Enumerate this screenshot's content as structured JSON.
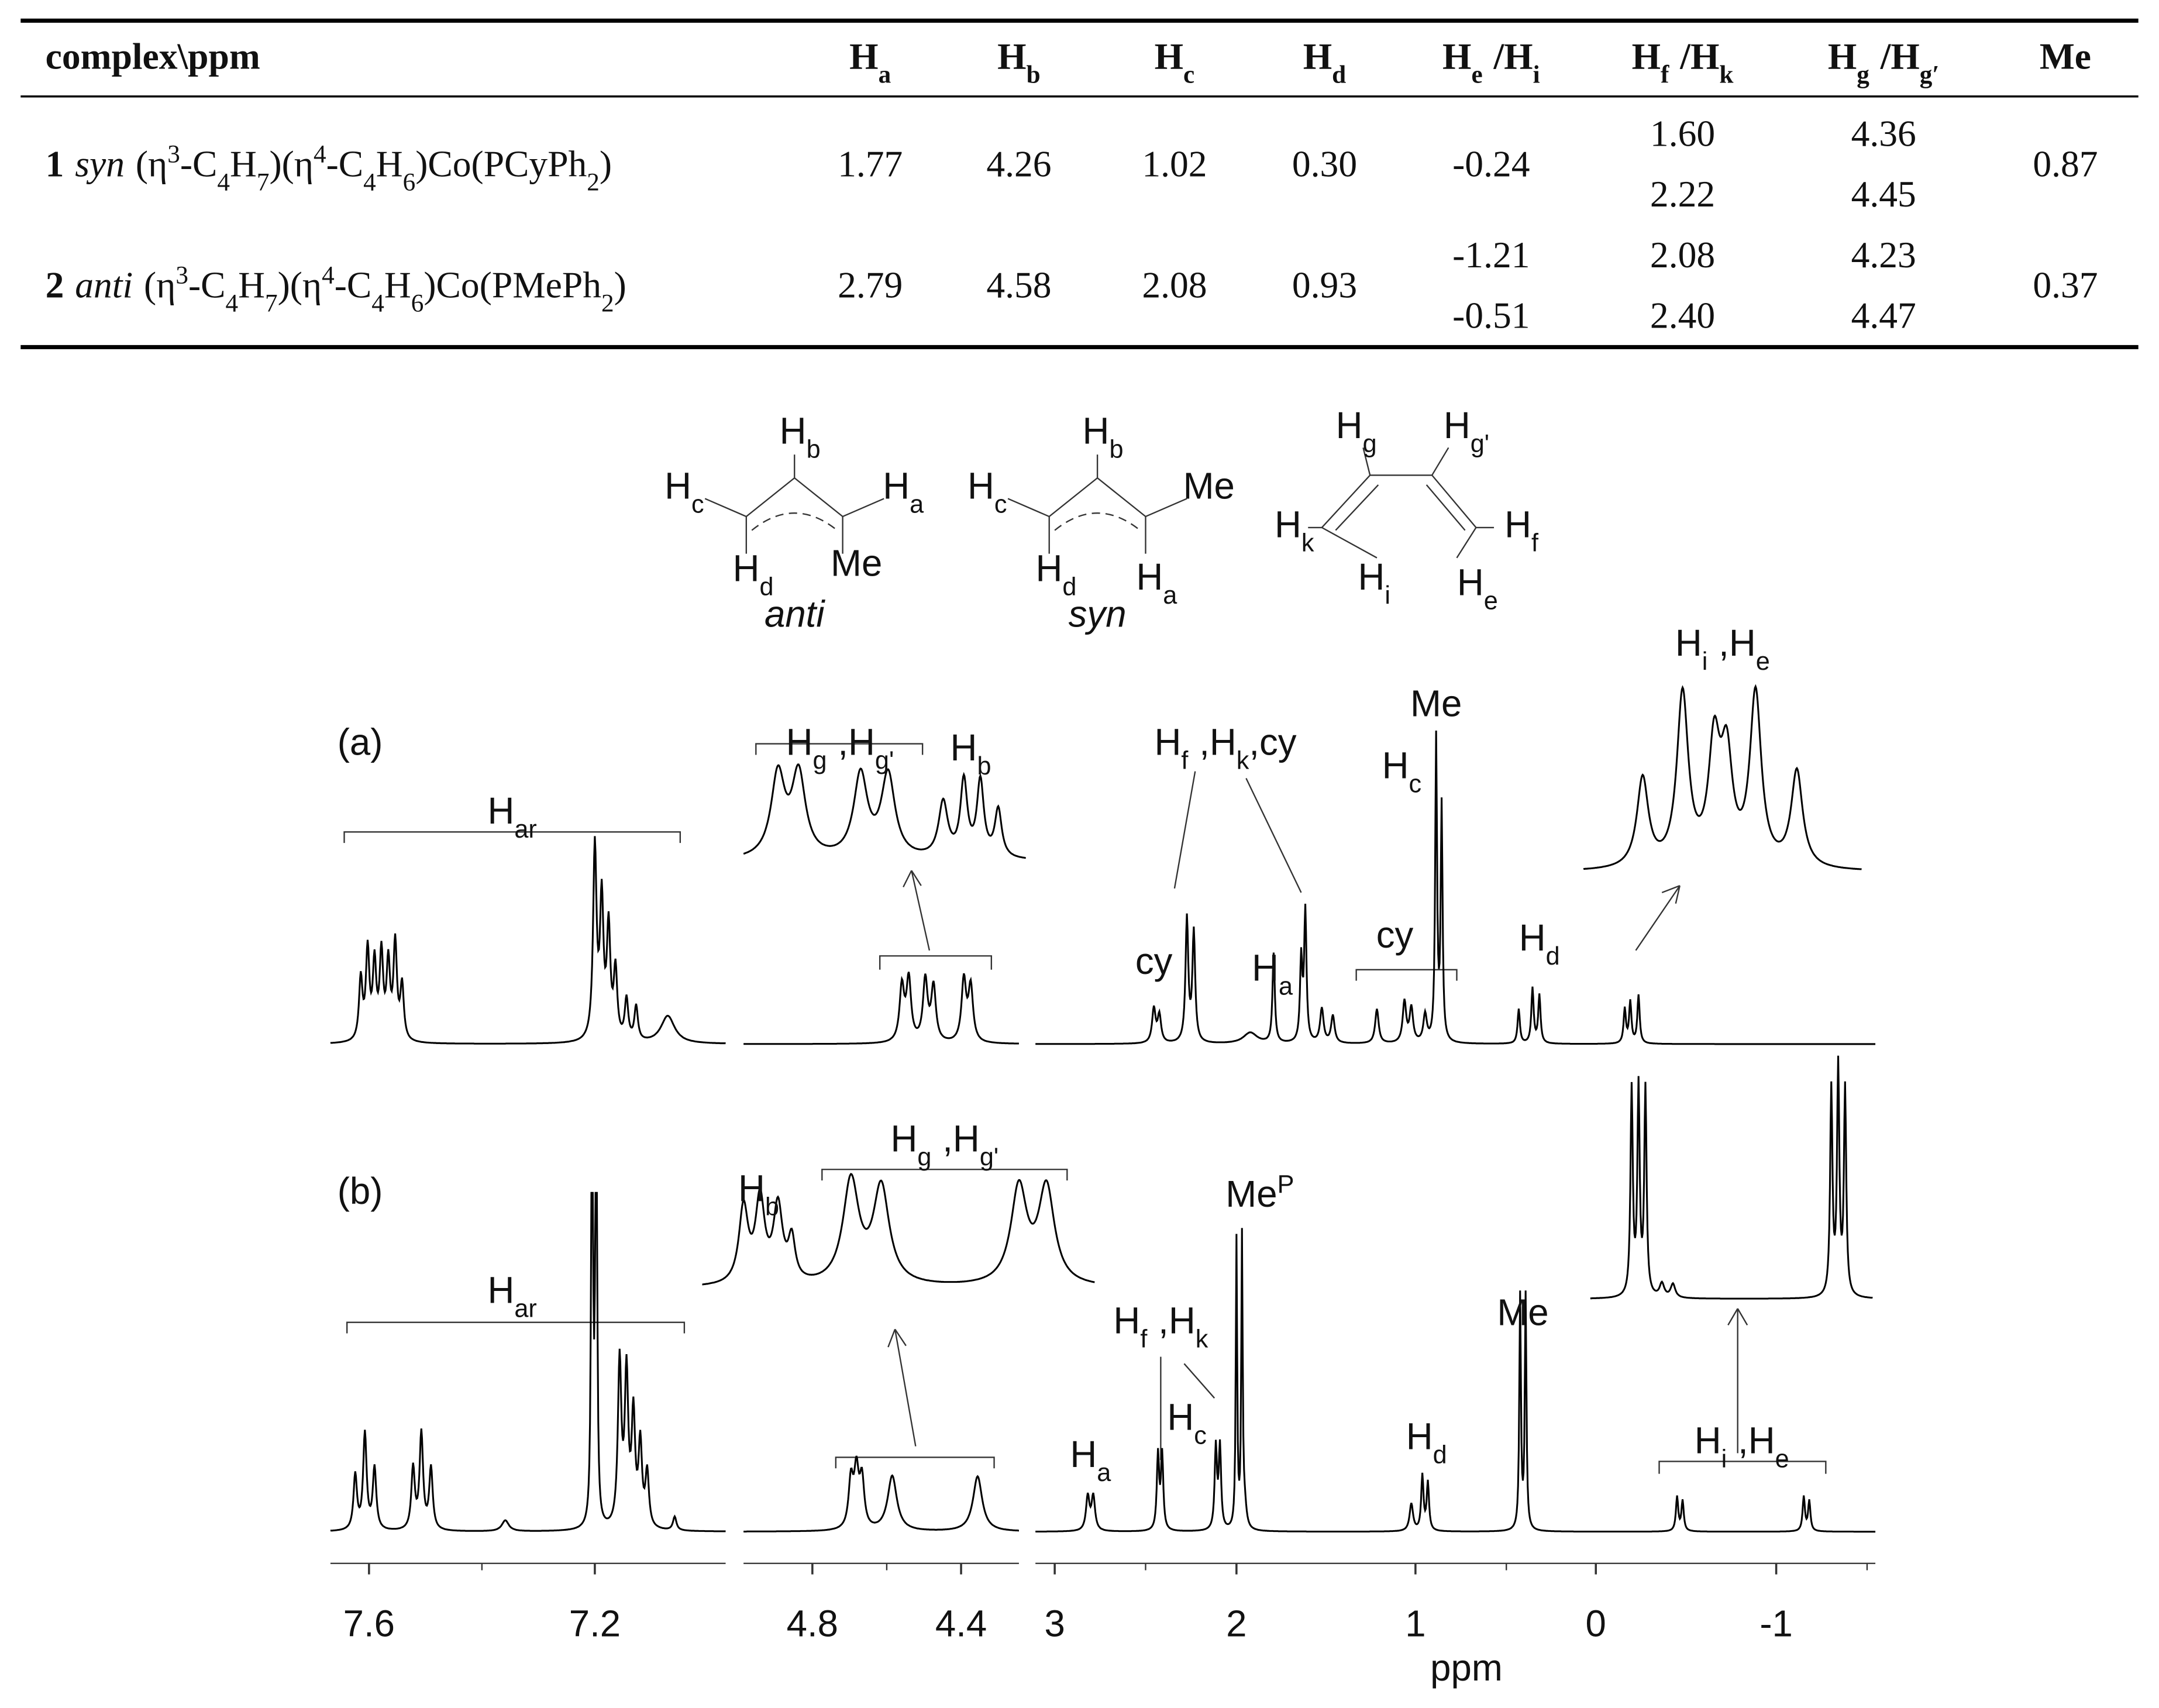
{
  "table": {
    "columns": [
      [
        "complex\\ppm"
      ],
      [
        "H",
        "a"
      ],
      [
        "H",
        "b"
      ],
      [
        "H",
        "c"
      ],
      [
        "H",
        "d"
      ],
      [
        "H",
        "e",
        "/H",
        "i"
      ],
      [
        "H",
        "f",
        "/H",
        "k"
      ],
      [
        "H",
        "g",
        "/H",
        "g′"
      ],
      [
        "Me"
      ]
    ],
    "rows": [
      {
        "label": [
          "1",
          "syn",
          "(η",
          "3",
          "-C",
          "4",
          "H",
          "7",
          ")(η",
          "4",
          "-C",
          "4",
          "H",
          "6",
          ")Co(PCyPh",
          "2",
          ")"
        ],
        "cells": [
          [
            "1.77"
          ],
          [
            "4.26"
          ],
          [
            "1.02"
          ],
          [
            "0.30"
          ],
          [
            "-0.24"
          ],
          [
            "1.60",
            "2.22"
          ],
          [
            "4.36",
            "4.45"
          ],
          [
            "0.87"
          ]
        ]
      },
      {
        "label": [
          "2",
          "anti",
          "(η",
          "3",
          "-C",
          "4",
          "H",
          "7",
          ")(η",
          "4",
          "-C",
          "4",
          "H",
          "6",
          ")Co(PMePh",
          "2",
          ")"
        ],
        "cells": [
          [
            "2.79"
          ],
          [
            "4.58"
          ],
          [
            "2.08"
          ],
          [
            "0.93"
          ],
          [
            "-1.21",
            "-0.51"
          ],
          [
            "2.08",
            "2.40"
          ],
          [
            "4.23",
            "4.47"
          ],
          [
            "0.37"
          ]
        ]
      }
    ]
  },
  "structures": [
    {
      "labels": [
        [
          "H",
          "b"
        ],
        [
          "H",
          "c"
        ],
        [
          "H",
          "a"
        ],
        [
          "H",
          "d"
        ],
        [
          "Me"
        ]
      ],
      "name": "anti"
    },
    {
      "labels": [
        [
          "H",
          "b"
        ],
        [
          "H",
          "c"
        ],
        [
          "Me"
        ],
        [
          "H",
          "d"
        ],
        [
          "H",
          "a"
        ]
      ],
      "name": "syn"
    },
    {
      "labels": [
        [
          "H",
          "g"
        ],
        [
          "H",
          "g'"
        ],
        [
          "H",
          "k"
        ],
        [
          "H",
          "f"
        ],
        [
          "H",
          "i"
        ],
        [
          "H",
          "e"
        ]
      ]
    }
  ],
  "spectra": [
    {
      "tag": "(a)",
      "labels": [
        [
          "H",
          "ar"
        ],
        [
          "H",
          "g",
          ",H",
          "g'"
        ],
        [
          "H",
          "b"
        ],
        [
          "H",
          "f",
          ",H",
          "k",
          ",cy"
        ],
        [
          "Me"
        ],
        [
          "H",
          "c"
        ],
        [
          "cy"
        ],
        [
          "H",
          "a"
        ],
        [
          "cy"
        ],
        [
          "H",
          "d"
        ],
        [
          "H",
          "i",
          ",H",
          "e"
        ]
      ]
    },
    {
      "tag": "(b)",
      "labels": [
        [
          "H",
          "ar"
        ],
        [
          "H",
          "b"
        ],
        [
          "H",
          "g",
          ",H",
          "g'"
        ],
        [
          "Me",
          "P"
        ],
        [
          "H",
          "f",
          ",H",
          "k"
        ],
        [
          "H",
          "c"
        ],
        [
          "H",
          "a"
        ],
        [
          "H",
          "d"
        ],
        [
          "Me"
        ],
        [
          "H",
          "i",
          ",H",
          "e"
        ]
      ]
    }
  ],
  "axis": {
    "ticks": [
      "7.6",
      "7.2",
      "4.8",
      "4.4",
      "3",
      "2",
      "1",
      "0",
      "-1"
    ],
    "label": "ppm"
  }
}
